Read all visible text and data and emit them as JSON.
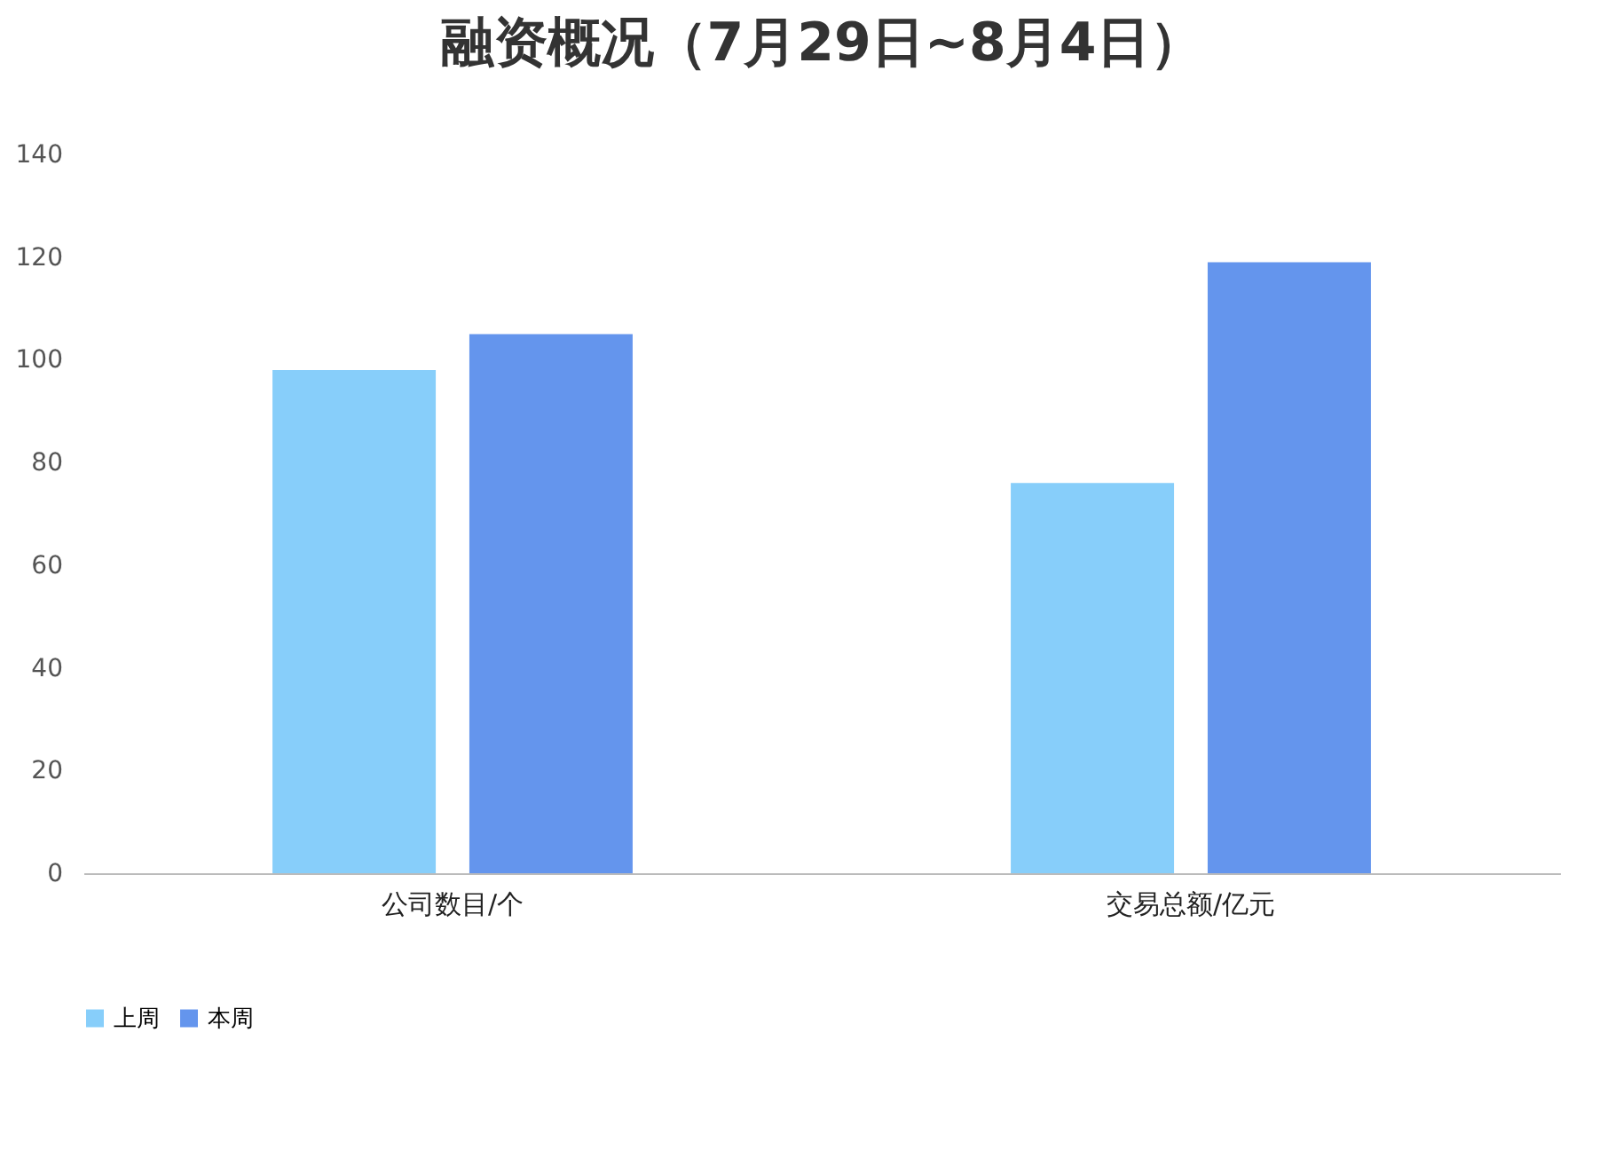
{
  "chart_data": {
    "type": "bar",
    "title": "融资概况（7月29日~8月4日）",
    "categories": [
      "公司数目/个",
      "交易总额/亿元"
    ],
    "series": [
      {
        "name": "上周",
        "color": "#87cefa",
        "values": [
          98,
          76
        ]
      },
      {
        "name": "本周",
        "color": "#6495ed",
        "values": [
          105,
          119
        ]
      }
    ],
    "ylim": [
      0,
      140
    ],
    "yticks": [
      0,
      20,
      40,
      60,
      80,
      100,
      120,
      140
    ],
    "grid": false,
    "legend": "bottom"
  }
}
